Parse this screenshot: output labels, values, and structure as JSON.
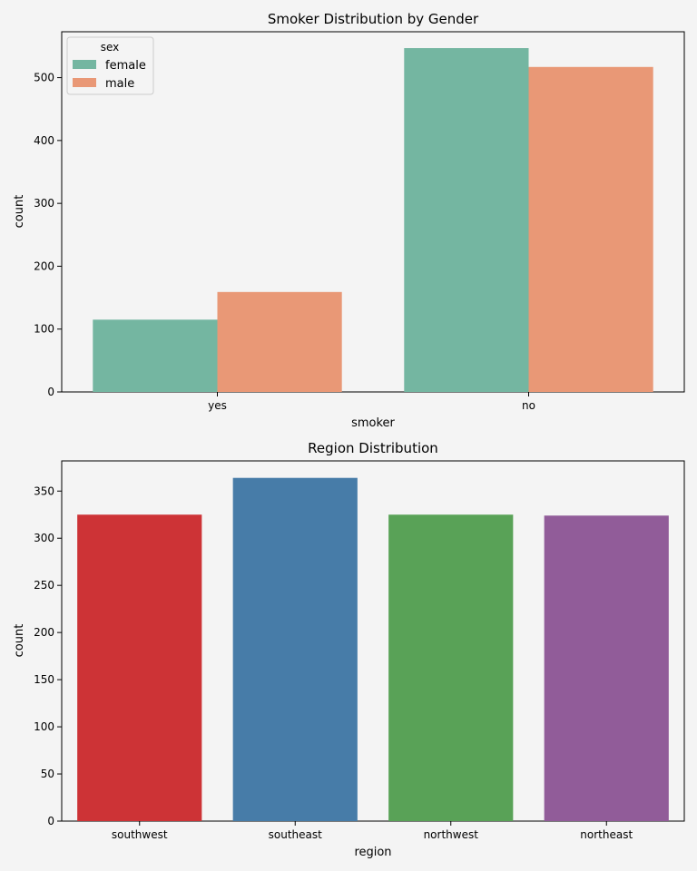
{
  "chart_data": [
    {
      "type": "bar",
      "title": "Smoker Distribution by Gender",
      "xlabel": "smoker",
      "ylabel": "count",
      "categories": [
        "yes",
        "no"
      ],
      "series": [
        {
          "name": "female",
          "values": [
            115,
            547
          ],
          "color": "#74b6a1"
        },
        {
          "name": "male",
          "values": [
            159,
            517
          ],
          "color": "#e99876"
        }
      ],
      "ylim": [
        0,
        573
      ],
      "yticks": [
        0,
        100,
        200,
        300,
        400,
        500
      ],
      "legend": {
        "title": "sex",
        "placement": "top-left"
      },
      "grid": false
    },
    {
      "type": "bar",
      "title": "Region Distribution",
      "xlabel": "region",
      "ylabel": "count",
      "categories": [
        "southwest",
        "southeast",
        "northwest",
        "northeast"
      ],
      "values": [
        325,
        364,
        325,
        324
      ],
      "colors": [
        "#cd3336",
        "#477ca8",
        "#59a257",
        "#915c99"
      ],
      "ylim": [
        0,
        382
      ],
      "yticks": [
        0,
        50,
        100,
        150,
        200,
        250,
        300,
        350
      ],
      "grid": false
    }
  ]
}
